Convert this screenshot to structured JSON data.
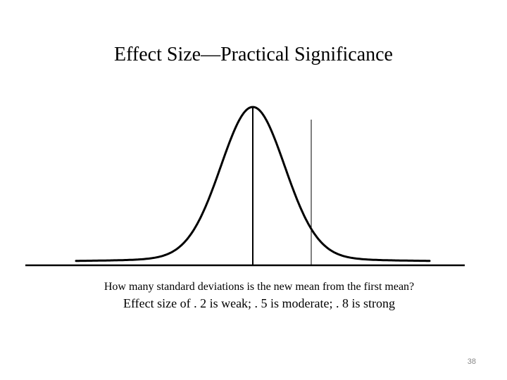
{
  "slide": {
    "title": "Effect Size—Practical Significance",
    "question": "How many standard deviations is the new mean from the first mean?",
    "scale_note": "Effect size of . 2 is weak; . 5 is moderate; . 8 is strong",
    "page_number": "38"
  },
  "diagram": {
    "curve": "normal-distribution-bell-curve",
    "markers": [
      "first-mean",
      "new-mean"
    ],
    "line_color": "#000000"
  }
}
